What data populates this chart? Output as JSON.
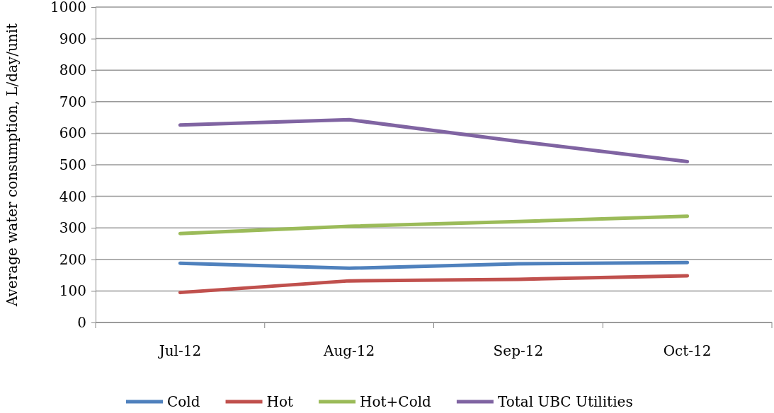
{
  "chart_data": {
    "type": "line",
    "ylabel": "Average water consumption, L/day/unit",
    "categories": [
      "Jul-12",
      "Aug-12",
      "Sep-12",
      "Oct-12"
    ],
    "series": [
      {
        "name": "Cold",
        "color": "#4f81bd",
        "values": [
          188,
          172,
          186,
          190
        ]
      },
      {
        "name": "Hot",
        "color": "#c0504d",
        "values": [
          95,
          132,
          137,
          148
        ]
      },
      {
        "name": "Hot+Cold",
        "color": "#9bbb59",
        "values": [
          282,
          305,
          320,
          337
        ]
      },
      {
        "name": "Total UBC Utilities",
        "color": "#8064a2",
        "values": [
          626,
          643,
          574,
          510
        ]
      }
    ],
    "ylim": [
      0,
      1000
    ],
    "yticks": [
      0,
      100,
      200,
      300,
      400,
      500,
      600,
      700,
      800,
      900,
      1000
    ],
    "grid": "y",
    "legend": "bottom",
    "marker": "none",
    "line_style": "solid"
  }
}
